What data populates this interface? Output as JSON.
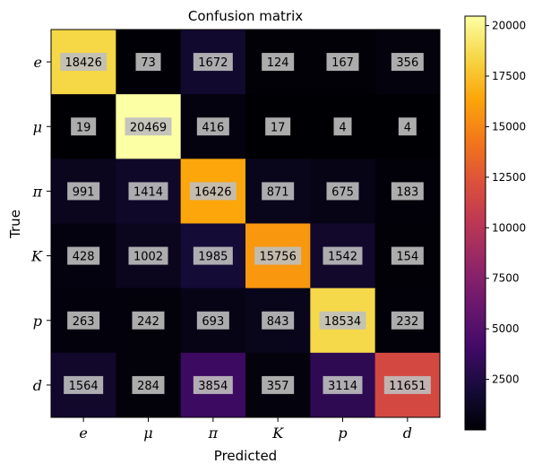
{
  "chart_data": {
    "type": "heatmap",
    "title": "Confusion matrix",
    "xlabel": "Predicted",
    "ylabel": "True",
    "x_categories": [
      "e",
      "μ",
      "π",
      "K",
      "p",
      "d"
    ],
    "y_categories": [
      "e",
      "μ",
      "π",
      "K",
      "p",
      "d"
    ],
    "matrix": [
      [
        18426,
        73,
        1672,
        124,
        167,
        356
      ],
      [
        19,
        20469,
        416,
        17,
        4,
        4
      ],
      [
        991,
        1414,
        16426,
        871,
        675,
        183
      ],
      [
        428,
        1002,
        1985,
        15756,
        1542,
        154
      ],
      [
        263,
        242,
        693,
        843,
        18534,
        232
      ],
      [
        1564,
        284,
        3854,
        357,
        3114,
        11651
      ]
    ],
    "colormap": "inferno",
    "colorbar": {
      "vmin": 0,
      "vmax": 20469,
      "ticks": [
        2500,
        5000,
        7500,
        10000,
        12500,
        15000,
        17500,
        20000
      ]
    },
    "cell_label_background": "#bfbfbf",
    "grid": false
  }
}
